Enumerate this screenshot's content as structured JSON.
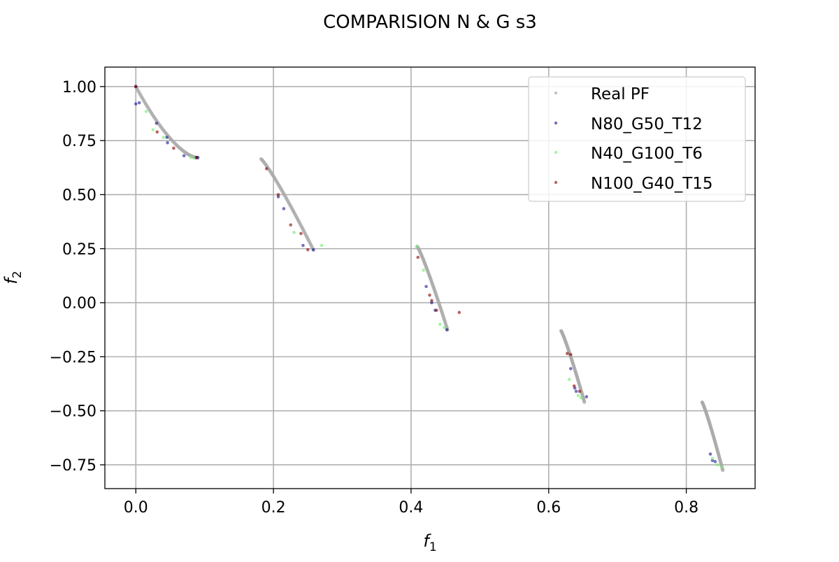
{
  "chart_data": {
    "type": "scatter",
    "title": "COMPARISION N & G s3",
    "xlabel": "f",
    "xlabel_sub": "1",
    "ylabel": "f",
    "ylabel_sub": "2",
    "xlim": [
      -0.045,
      0.9
    ],
    "ylim": [
      -0.86,
      1.09
    ],
    "x_ticks": [
      0.0,
      0.2,
      0.4,
      0.6,
      0.8
    ],
    "x_tick_labels": [
      "0.0",
      "0.2",
      "0.4",
      "0.6",
      "0.8"
    ],
    "y_ticks": [
      -0.75,
      -0.5,
      -0.25,
      0.0,
      0.25,
      0.5,
      0.75,
      1.0
    ],
    "y_tick_labels": [
      "−0.75",
      "−0.50",
      "−0.25",
      "0.00",
      "0.25",
      "0.50",
      "0.75",
      "1.00"
    ],
    "grid": true,
    "legend_position": "top-right",
    "real_pf_segments": [
      {
        "x0": 0.0,
        "x1": 0.09,
        "y0": 1.0,
        "y1": 0.67,
        "shape": "convex"
      },
      {
        "x0": 0.182,
        "x1": 0.258,
        "y0": 0.665,
        "y1": 0.245,
        "shape": "linear"
      },
      {
        "x0": 0.409,
        "x1": 0.453,
        "y0": 0.26,
        "y1": -0.125,
        "shape": "linear"
      },
      {
        "x0": 0.618,
        "x1": 0.652,
        "y0": -0.13,
        "y1": -0.46,
        "shape": "linear"
      },
      {
        "x0": 0.823,
        "x1": 0.853,
        "y0": -0.46,
        "y1": -0.775,
        "shape": "linear"
      }
    ],
    "series": [
      {
        "name": "Real PF",
        "color": "#a9a9a9",
        "opacity": 0.7,
        "points": []
      },
      {
        "name": "N80_G50_T12",
        "color": "#00008b",
        "opacity": 0.55,
        "points": [
          [
            0.0,
            1.0
          ],
          [
            0.0,
            0.92
          ],
          [
            0.005,
            0.925
          ],
          [
            0.03,
            0.83
          ],
          [
            0.045,
            0.765
          ],
          [
            0.046,
            0.74
          ],
          [
            0.07,
            0.68
          ],
          [
            0.088,
            0.672
          ],
          [
            0.09,
            0.672
          ],
          [
            0.207,
            0.49
          ],
          [
            0.215,
            0.435
          ],
          [
            0.243,
            0.265
          ],
          [
            0.258,
            0.245
          ],
          [
            0.422,
            0.075
          ],
          [
            0.43,
            0.0
          ],
          [
            0.435,
            -0.035
          ],
          [
            0.452,
            -0.125
          ],
          [
            0.632,
            -0.305
          ],
          [
            0.638,
            -0.395
          ],
          [
            0.64,
            -0.41
          ],
          [
            0.655,
            -0.435
          ],
          [
            0.835,
            -0.7
          ],
          [
            0.838,
            -0.73
          ],
          [
            0.842,
            -0.735
          ]
        ]
      },
      {
        "name": "N40_G100_T6",
        "color": "#77ee77",
        "opacity": 0.65,
        "points": [
          [
            0.015,
            0.885
          ],
          [
            0.025,
            0.8
          ],
          [
            0.04,
            0.765
          ],
          [
            0.08,
            0.672
          ],
          [
            0.085,
            0.67
          ],
          [
            0.23,
            0.325
          ],
          [
            0.27,
            0.265
          ],
          [
            0.408,
            0.26
          ],
          [
            0.418,
            0.15
          ],
          [
            0.442,
            -0.1
          ],
          [
            0.448,
            -0.115
          ],
          [
            0.63,
            -0.355
          ],
          [
            0.643,
            -0.43
          ],
          [
            0.647,
            -0.44
          ],
          [
            0.838,
            -0.72
          ],
          [
            0.845,
            -0.75
          ],
          [
            0.852,
            -0.76
          ]
        ]
      },
      {
        "name": "N100_G40_T15",
        "color": "#8b0000",
        "opacity": 0.6,
        "points": [
          [
            0.0,
            1.0
          ],
          [
            0.031,
            0.79
          ],
          [
            0.055,
            0.715
          ],
          [
            0.088,
            0.672
          ],
          [
            0.19,
            0.62
          ],
          [
            0.207,
            0.5
          ],
          [
            0.225,
            0.36
          ],
          [
            0.24,
            0.32
          ],
          [
            0.25,
            0.245
          ],
          [
            0.41,
            0.21
          ],
          [
            0.427,
            0.035
          ],
          [
            0.43,
            0.01
          ],
          [
            0.437,
            -0.035
          ],
          [
            0.47,
            -0.045
          ],
          [
            0.627,
            -0.235
          ],
          [
            0.632,
            -0.24
          ],
          [
            0.637,
            -0.385
          ],
          [
            0.645,
            -0.41
          ]
        ]
      }
    ]
  }
}
